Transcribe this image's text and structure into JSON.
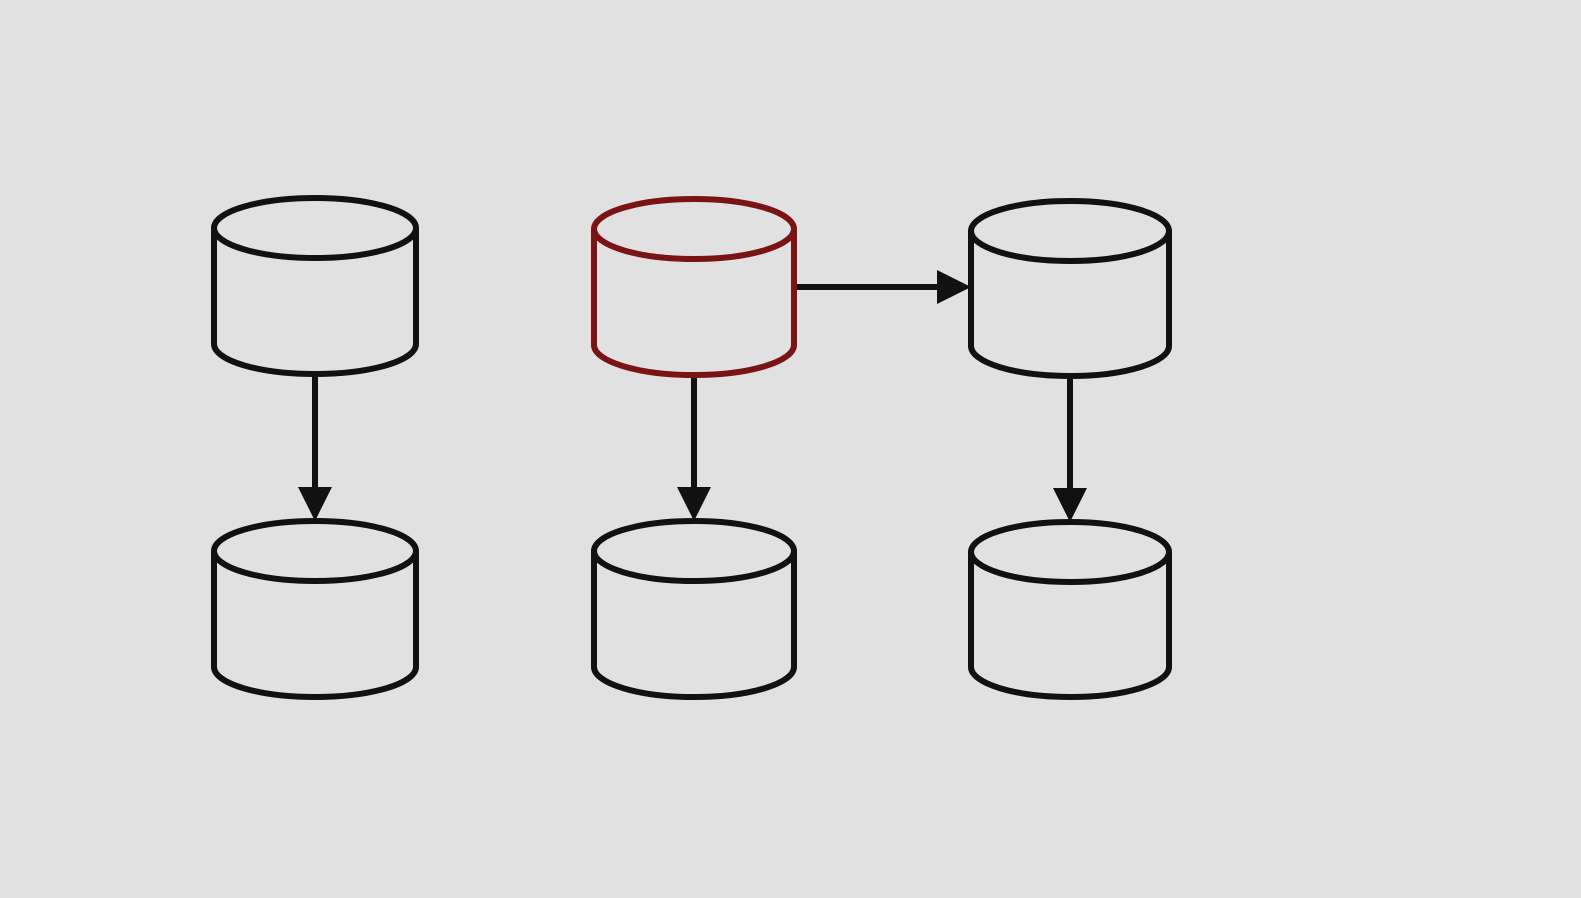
{
  "diagram": {
    "background": "#e1e1e1",
    "colors": {
      "default_stroke": "#111111",
      "highlight_stroke": "#7a1414",
      "edge": "#111111"
    },
    "nodes": [
      {
        "id": "db-left-top",
        "shape": "cylinder",
        "highlighted": false
      },
      {
        "id": "db-left-bottom",
        "shape": "cylinder",
        "highlighted": false
      },
      {
        "id": "db-middle-top",
        "shape": "cylinder",
        "highlighted": true
      },
      {
        "id": "db-middle-bottom",
        "shape": "cylinder",
        "highlighted": false
      },
      {
        "id": "db-right-top",
        "shape": "cylinder",
        "highlighted": false
      },
      {
        "id": "db-right-bottom",
        "shape": "cylinder",
        "highlighted": false
      }
    ],
    "edges": [
      {
        "from": "db-left-top",
        "to": "db-left-bottom"
      },
      {
        "from": "db-middle-top",
        "to": "db-middle-bottom"
      },
      {
        "from": "db-middle-top",
        "to": "db-right-top"
      },
      {
        "from": "db-right-top",
        "to": "db-right-bottom"
      }
    ]
  }
}
